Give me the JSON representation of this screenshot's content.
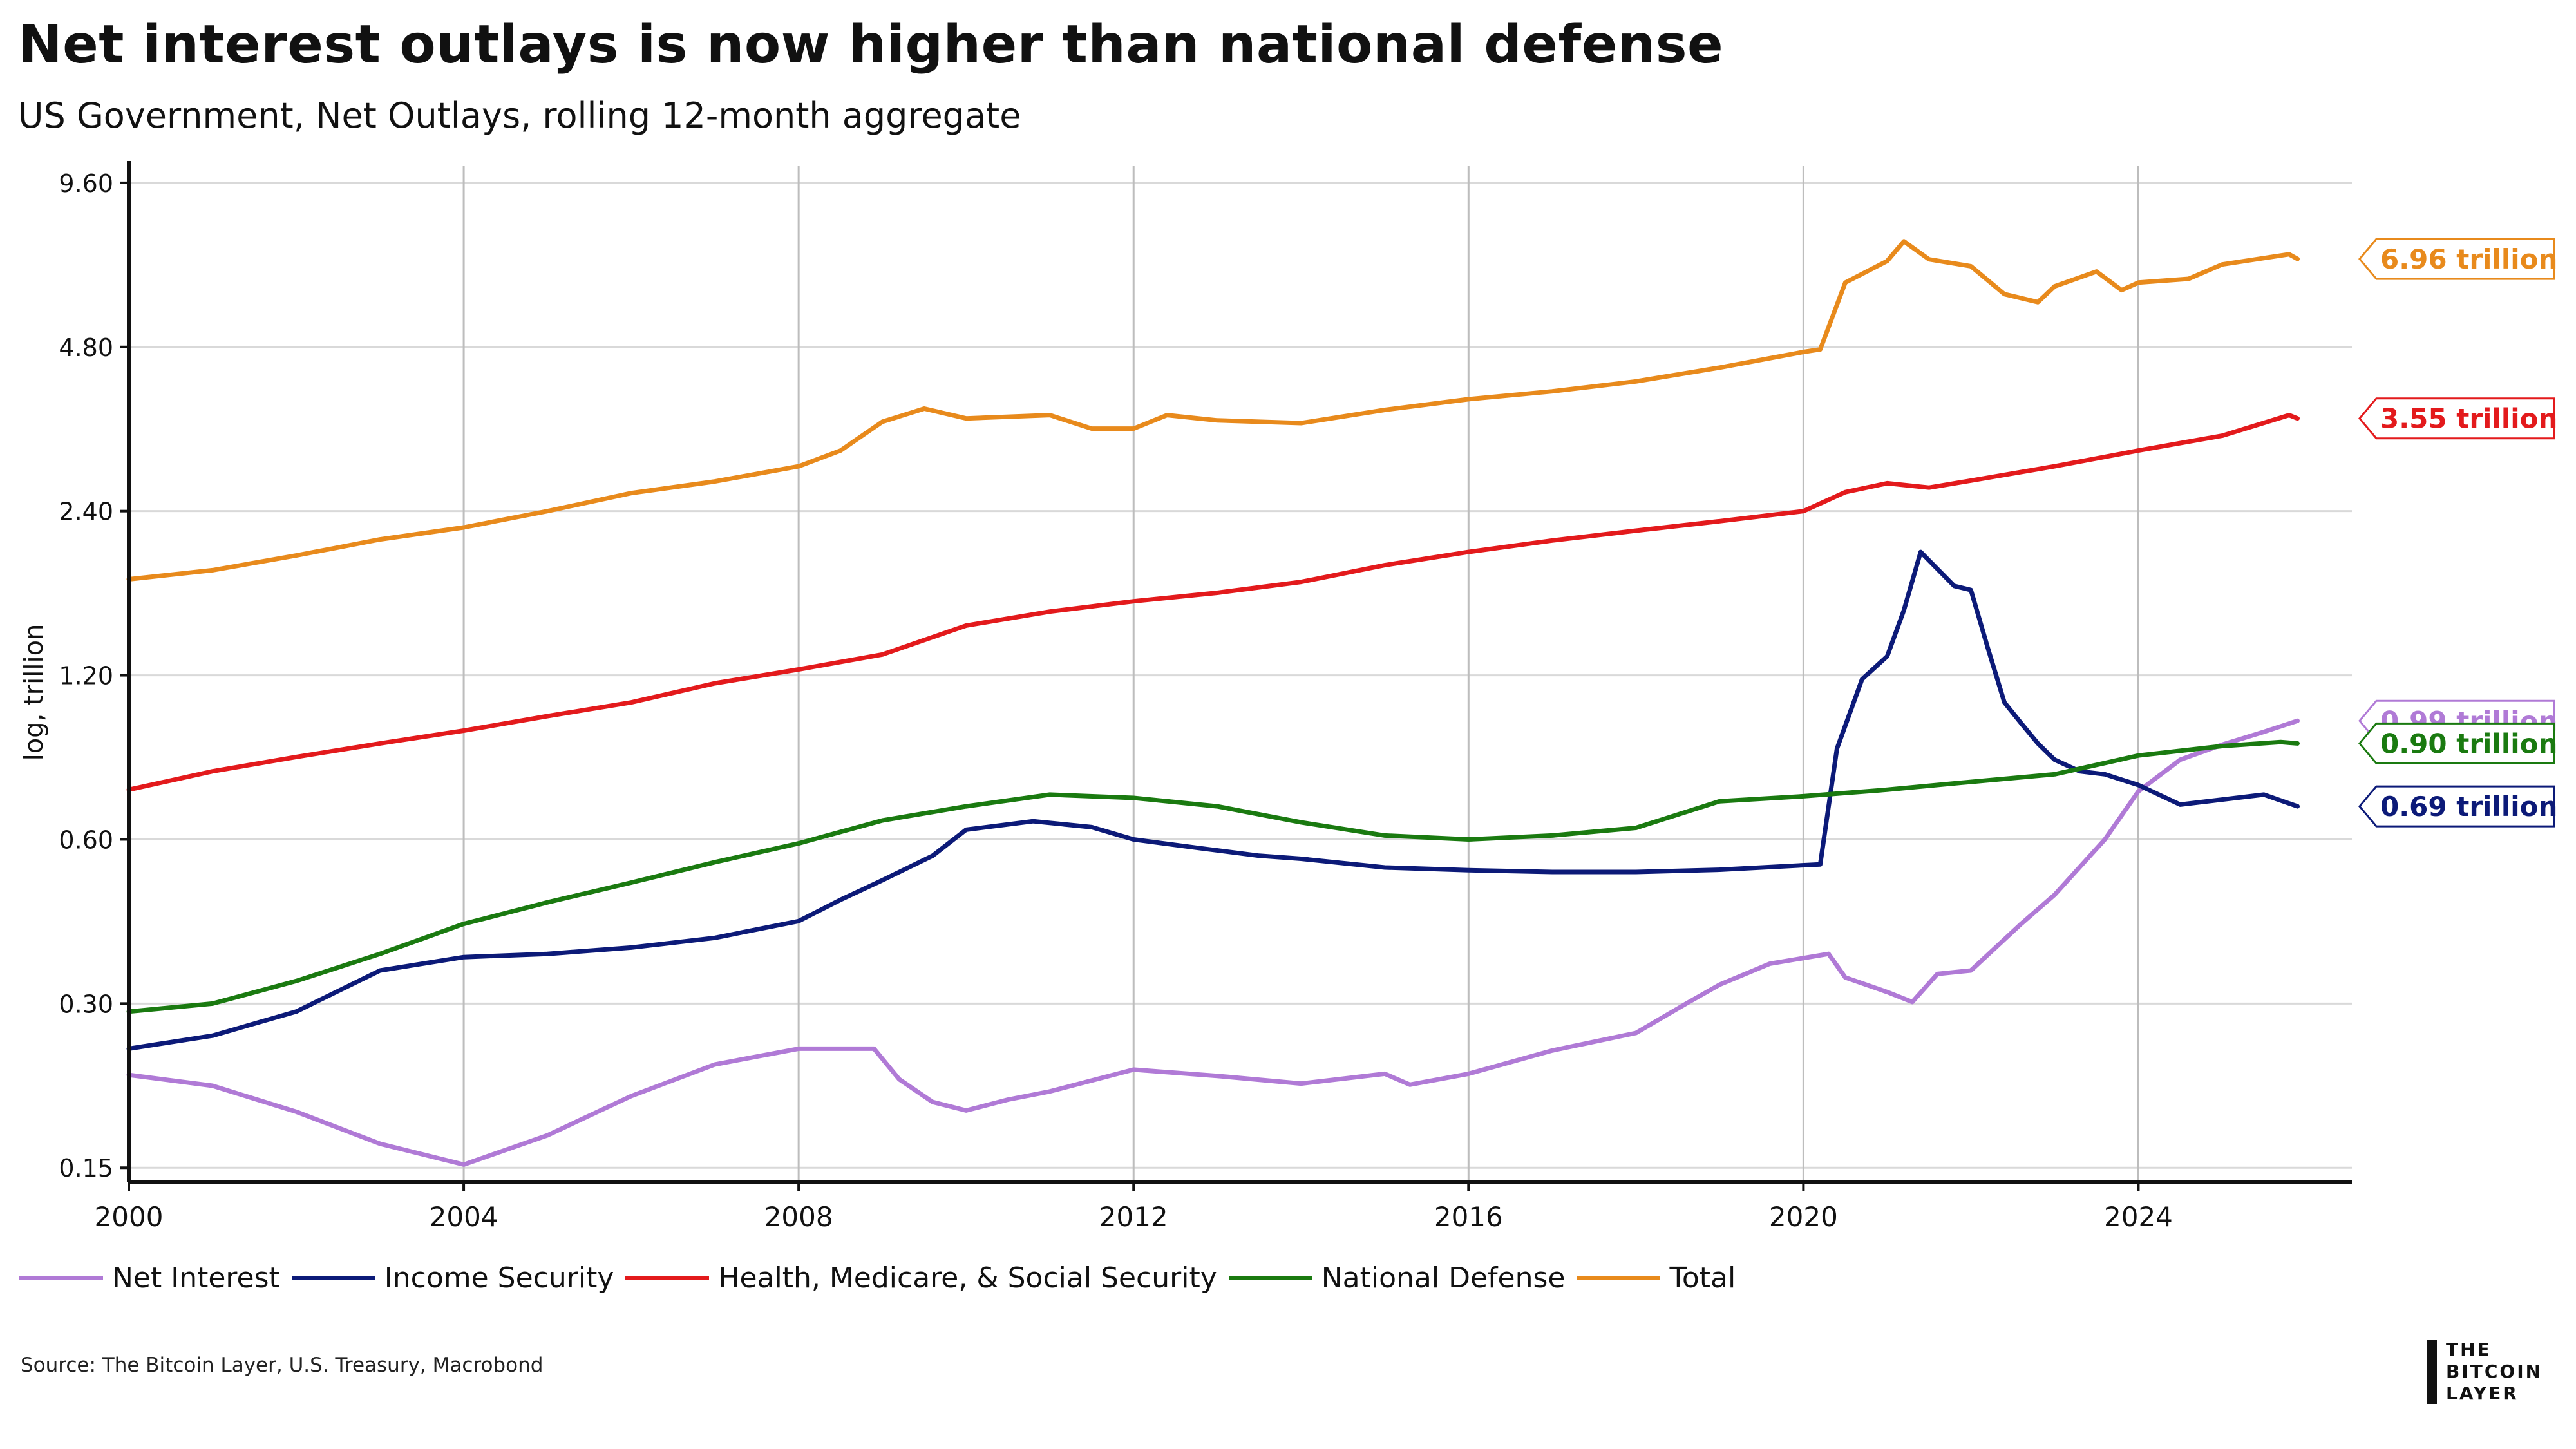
{
  "title": "Net interest outlays is now higher than national defense",
  "subtitle": "US Government, Net Outlays, rolling 12-month aggregate",
  "source": "Source: The Bitcoin Layer, U.S. Treasury, Macrobond",
  "brand": {
    "line1": "THE",
    "line2": "BITCOIN",
    "line3": "LAYER"
  },
  "chart_data": {
    "type": "line",
    "title": "Net interest outlays is now higher than national defense",
    "subtitle": "US Government, Net Outlays, rolling 12-month aggregate",
    "xlabel": "",
    "ylabel": "log, trillion",
    "y_scale": "log2",
    "xlim": [
      2000,
      2026.55
    ],
    "ylim": [
      0.141,
      10.3
    ],
    "x_ticks": [
      "2000",
      "2004",
      "2008",
      "2012",
      "2016",
      "2020",
      "2024"
    ],
    "y_ticks": [
      0.15,
      0.3,
      0.6,
      1.2,
      2.4,
      4.8,
      9.6
    ],
    "y_tick_labels": [
      "0.15",
      "0.30",
      "0.60",
      "1.20",
      "2.40",
      "4.80",
      "9.60"
    ],
    "grid": true,
    "legend_position": "bottom-left",
    "series": [
      {
        "name": "Net Interest",
        "color": "#b07ad6",
        "end_label": "0.99 trillion",
        "points": [
          [
            2000,
            0.222
          ],
          [
            2001,
            0.212
          ],
          [
            2002,
            0.19
          ],
          [
            2003,
            0.166
          ],
          [
            2004,
            0.152
          ],
          [
            2005,
            0.172
          ],
          [
            2006,
            0.203
          ],
          [
            2007,
            0.232
          ],
          [
            2008,
            0.248
          ],
          [
            2008.9,
            0.248
          ],
          [
            2009.2,
            0.218
          ],
          [
            2009.6,
            0.198
          ],
          [
            2010,
            0.191
          ],
          [
            2010.5,
            0.2
          ],
          [
            2011,
            0.207
          ],
          [
            2012,
            0.227
          ],
          [
            2013,
            0.221
          ],
          [
            2014,
            0.214
          ],
          [
            2015,
            0.223
          ],
          [
            2015.3,
            0.213
          ],
          [
            2016,
            0.223
          ],
          [
            2017,
            0.246
          ],
          [
            2018,
            0.265
          ],
          [
            2018.6,
            0.3
          ],
          [
            2019,
            0.325
          ],
          [
            2019.6,
            0.355
          ],
          [
            2020.3,
            0.37
          ],
          [
            2020.5,
            0.335
          ],
          [
            2021,
            0.315
          ],
          [
            2021.3,
            0.302
          ],
          [
            2021.6,
            0.34
          ],
          [
            2022,
            0.345
          ],
          [
            2022.6,
            0.42
          ],
          [
            2023,
            0.475
          ],
          [
            2023.6,
            0.6
          ],
          [
            2024,
            0.735
          ],
          [
            2024.5,
            0.84
          ],
          [
            2025,
            0.895
          ],
          [
            2025.5,
            0.945
          ],
          [
            2025.9,
            0.99
          ]
        ]
      },
      {
        "name": "Income Security",
        "color": "#0c1a78",
        "end_label": "0.69 trillion",
        "points": [
          [
            2000,
            0.248
          ],
          [
            2001,
            0.262
          ],
          [
            2002,
            0.29
          ],
          [
            2003,
            0.345
          ],
          [
            2004,
            0.365
          ],
          [
            2005,
            0.37
          ],
          [
            2006,
            0.38
          ],
          [
            2007,
            0.396
          ],
          [
            2008,
            0.425
          ],
          [
            2008.5,
            0.465
          ],
          [
            2009,
            0.505
          ],
          [
            2009.6,
            0.56
          ],
          [
            2010,
            0.625
          ],
          [
            2010.8,
            0.648
          ],
          [
            2011.5,
            0.632
          ],
          [
            2012,
            0.6
          ],
          [
            2012.8,
            0.578
          ],
          [
            2013.5,
            0.56
          ],
          [
            2014,
            0.553
          ],
          [
            2015,
            0.533
          ],
          [
            2016,
            0.527
          ],
          [
            2017,
            0.523
          ],
          [
            2018,
            0.523
          ],
          [
            2019,
            0.528
          ],
          [
            2020.2,
            0.54
          ],
          [
            2020.4,
            0.88
          ],
          [
            2020.7,
            1.18
          ],
          [
            2021,
            1.3
          ],
          [
            2021.2,
            1.58
          ],
          [
            2021.4,
            2.02
          ],
          [
            2021.8,
            1.75
          ],
          [
            2022,
            1.72
          ],
          [
            2022.2,
            1.35
          ],
          [
            2022.4,
            1.07
          ],
          [
            2022.6,
            0.98
          ],
          [
            2022.8,
            0.9
          ],
          [
            2023,
            0.84
          ],
          [
            2023.3,
            0.8
          ],
          [
            2023.6,
            0.79
          ],
          [
            2024,
            0.755
          ],
          [
            2024.5,
            0.695
          ],
          [
            2025,
            0.71
          ],
          [
            2025.5,
            0.725
          ],
          [
            2025.9,
            0.69
          ]
        ]
      },
      {
        "name": "Health, Medicare, & Social Security",
        "color": "#e31a1c",
        "end_label": "3.55 trillion",
        "points": [
          [
            2000,
            0.74
          ],
          [
            2001,
            0.8
          ],
          [
            2002,
            0.85
          ],
          [
            2003,
            0.9
          ],
          [
            2004,
            0.95
          ],
          [
            2005,
            1.01
          ],
          [
            2006,
            1.07
          ],
          [
            2007,
            1.16
          ],
          [
            2008,
            1.23
          ],
          [
            2009,
            1.31
          ],
          [
            2010,
            1.48
          ],
          [
            2011,
            1.57
          ],
          [
            2012,
            1.64
          ],
          [
            2013,
            1.7
          ],
          [
            2014,
            1.78
          ],
          [
            2015,
            1.91
          ],
          [
            2016,
            2.02
          ],
          [
            2017,
            2.12
          ],
          [
            2018,
            2.21
          ],
          [
            2019,
            2.3
          ],
          [
            2020,
            2.4
          ],
          [
            2020.5,
            2.6
          ],
          [
            2021,
            2.7
          ],
          [
            2021.5,
            2.65
          ],
          [
            2022,
            2.73
          ],
          [
            2023,
            2.9
          ],
          [
            2024,
            3.1
          ],
          [
            2025,
            3.3
          ],
          [
            2025.8,
            3.6
          ],
          [
            2025.9,
            3.55
          ]
        ]
      },
      {
        "name": "National Defense",
        "color": "#1a7a10",
        "end_label": "0.90 trillion",
        "points": [
          [
            2000,
            0.29
          ],
          [
            2001,
            0.3
          ],
          [
            2002,
            0.33
          ],
          [
            2003,
            0.37
          ],
          [
            2004,
            0.42
          ],
          [
            2005,
            0.46
          ],
          [
            2006,
            0.5
          ],
          [
            2007,
            0.545
          ],
          [
            2008,
            0.59
          ],
          [
            2009,
            0.65
          ],
          [
            2010,
            0.69
          ],
          [
            2011,
            0.725
          ],
          [
            2012,
            0.715
          ],
          [
            2013,
            0.69
          ],
          [
            2014,
            0.645
          ],
          [
            2015,
            0.61
          ],
          [
            2016,
            0.6
          ],
          [
            2017,
            0.61
          ],
          [
            2018,
            0.63
          ],
          [
            2019,
            0.705
          ],
          [
            2020,
            0.72
          ],
          [
            2021,
            0.74
          ],
          [
            2022,
            0.765
          ],
          [
            2023,
            0.79
          ],
          [
            2024,
            0.855
          ],
          [
            2025,
            0.89
          ],
          [
            2025.7,
            0.905
          ],
          [
            2025.9,
            0.9
          ]
        ]
      },
      {
        "name": "Total",
        "color": "#e88a1c",
        "end_label": "6.96 trillion",
        "points": [
          [
            2000,
            1.8
          ],
          [
            2001,
            1.87
          ],
          [
            2002,
            1.99
          ],
          [
            2003,
            2.13
          ],
          [
            2004,
            2.24
          ],
          [
            2005,
            2.4
          ],
          [
            2006,
            2.59
          ],
          [
            2007,
            2.72
          ],
          [
            2008,
            2.9
          ],
          [
            2008.5,
            3.1
          ],
          [
            2009,
            3.5
          ],
          [
            2009.5,
            3.7
          ],
          [
            2010,
            3.55
          ],
          [
            2011,
            3.6
          ],
          [
            2011.5,
            3.4
          ],
          [
            2012,
            3.4
          ],
          [
            2012.4,
            3.6
          ],
          [
            2013,
            3.52
          ],
          [
            2014,
            3.48
          ],
          [
            2015,
            3.68
          ],
          [
            2016,
            3.85
          ],
          [
            2017,
            3.98
          ],
          [
            2018,
            4.15
          ],
          [
            2019,
            4.4
          ],
          [
            2020,
            4.7
          ],
          [
            2020.2,
            4.75
          ],
          [
            2020.5,
            6.3
          ],
          [
            2021,
            6.9
          ],
          [
            2021.2,
            7.5
          ],
          [
            2021.5,
            6.95
          ],
          [
            2022,
            6.75
          ],
          [
            2022.4,
            6.0
          ],
          [
            2022.8,
            5.8
          ],
          [
            2023,
            6.2
          ],
          [
            2023.5,
            6.6
          ],
          [
            2023.8,
            6.1
          ],
          [
            2024,
            6.3
          ],
          [
            2024.6,
            6.4
          ],
          [
            2025,
            6.8
          ],
          [
            2025.8,
            7.1
          ],
          [
            2025.9,
            6.96
          ]
        ]
      }
    ]
  }
}
